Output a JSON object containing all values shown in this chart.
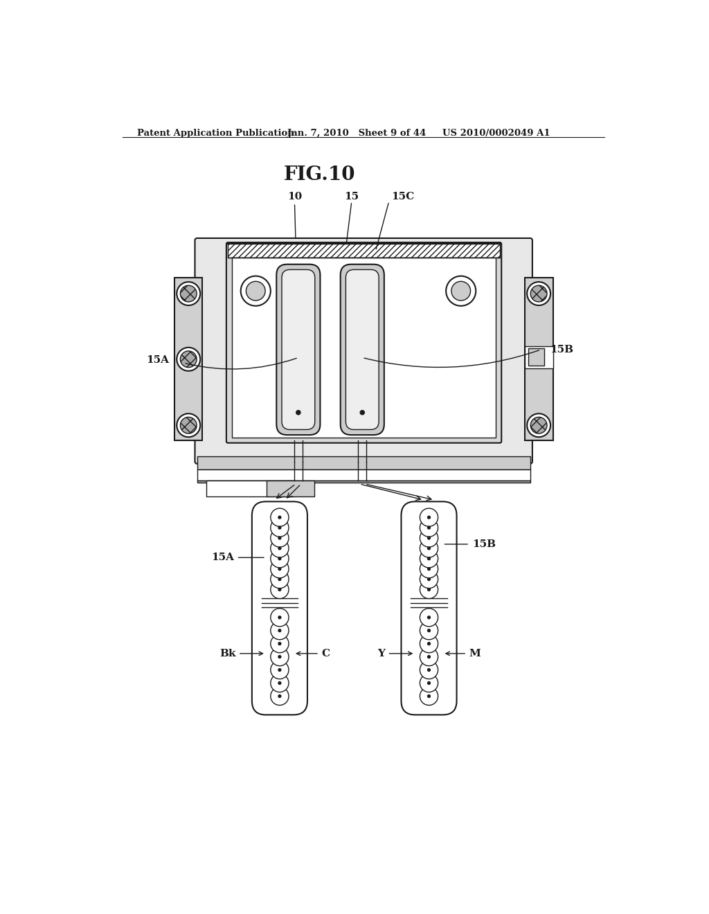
{
  "title": "FIG.10",
  "header_left": "Patent Application Publication",
  "header_mid": "Jan. 7, 2010   Sheet 9 of 44",
  "header_right": "US 2010/0002049 A1",
  "bg_color": "#ffffff",
  "line_color": "#1a1a1a",
  "label_10": "10",
  "label_15": "15",
  "label_15C": "15C",
  "label_15A_top": "15A",
  "label_15B_top": "15B",
  "label_15A_bot": "15A",
  "label_15B_bot": "15B",
  "label_Bk": "Bk",
  "label_C": "C",
  "label_Y": "Y",
  "label_M": "M"
}
